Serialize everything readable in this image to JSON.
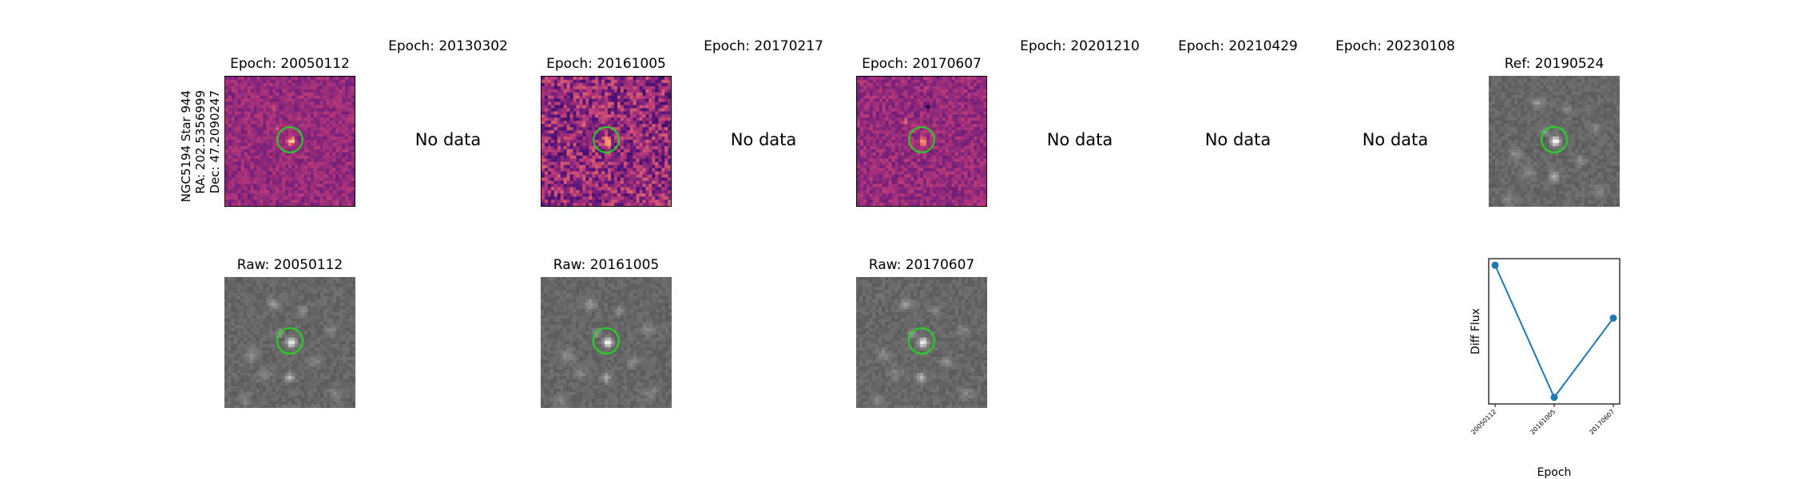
{
  "star_info": {
    "line1": "NGC5194 Star 944",
    "line2": "RA: 202.5356999",
    "line3": "Dec: 47.2090247"
  },
  "epochs": [
    {
      "title": "Epoch: 20050112",
      "has_data": true
    },
    {
      "title": "Epoch: 20130302",
      "has_data": false
    },
    {
      "title": "Epoch: 20161005",
      "has_data": true
    },
    {
      "title": "Epoch: 20170217",
      "has_data": false
    },
    {
      "title": "Epoch: 20170607",
      "has_data": true
    },
    {
      "title": "Epoch: 20201210",
      "has_data": false
    },
    {
      "title": "Epoch: 20210429",
      "has_data": false
    },
    {
      "title": "Epoch: 20230108",
      "has_data": false
    }
  ],
  "no_data_label": "No data",
  "reference": {
    "title": "Ref: 20190524"
  },
  "raw": [
    {
      "title": "Raw: 20050112"
    },
    {
      "title": "Raw: 20161005"
    },
    {
      "title": "Raw: 20170607"
    }
  ],
  "colors": {
    "diff_cmap": "magma",
    "raw_cmap": "gray",
    "aperture": "#22dd22",
    "series": "#1f77b4"
  },
  "chart_data": {
    "type": "line",
    "x": [
      "20050112",
      "20161005",
      "20170607"
    ],
    "y": [
      1.0,
      0.0,
      0.6
    ],
    "xlabel": "Epoch",
    "ylabel": "Diff Flux",
    "y_ticks_shown": false,
    "grid": false
  }
}
